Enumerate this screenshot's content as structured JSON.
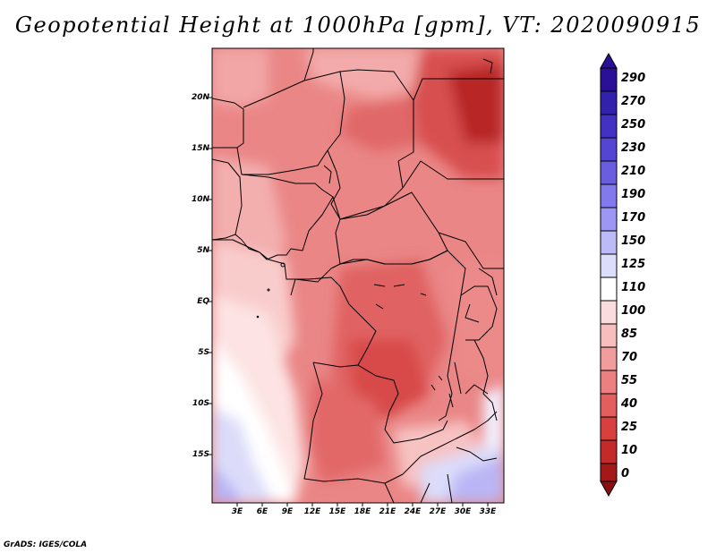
{
  "title": "Geopotential Height at 1000hPa [gpm], VT: 2020090915",
  "credit": "GrADS: IGES/COLA",
  "map": {
    "region": "Central and Southern Africa",
    "lon_range": [
      0,
      35
    ],
    "lat_range": [
      -20,
      24
    ],
    "lat_ticks": [
      "20N",
      "15N",
      "10N",
      "5N",
      "EQ",
      "5S",
      "10S",
      "15S"
    ],
    "lon_ticks": [
      "3E",
      "6E",
      "9E",
      "12E",
      "15E",
      "18E",
      "21E",
      "24E",
      "27E",
      "30E",
      "33E"
    ]
  },
  "colorbar": {
    "levels": [
      "290",
      "270",
      "250",
      "230",
      "210",
      "190",
      "170",
      "150",
      "125",
      "110",
      "100",
      "85",
      "70",
      "55",
      "40",
      "25",
      "10",
      "0"
    ],
    "colors": [
      "#2a0f97",
      "#3121ad",
      "#4231c2",
      "#5446d2",
      "#6a5de0",
      "#8279ec",
      "#9d97f3",
      "#bdbaf8",
      "#dcdcfb",
      "#ffffff",
      "#fbdcdc",
      "#f8bdbd",
      "#f29d9d",
      "#ec8080",
      "#e45e5e",
      "#d84040",
      "#c42a2a",
      "#a51818",
      "#8a0f0f"
    ]
  }
}
